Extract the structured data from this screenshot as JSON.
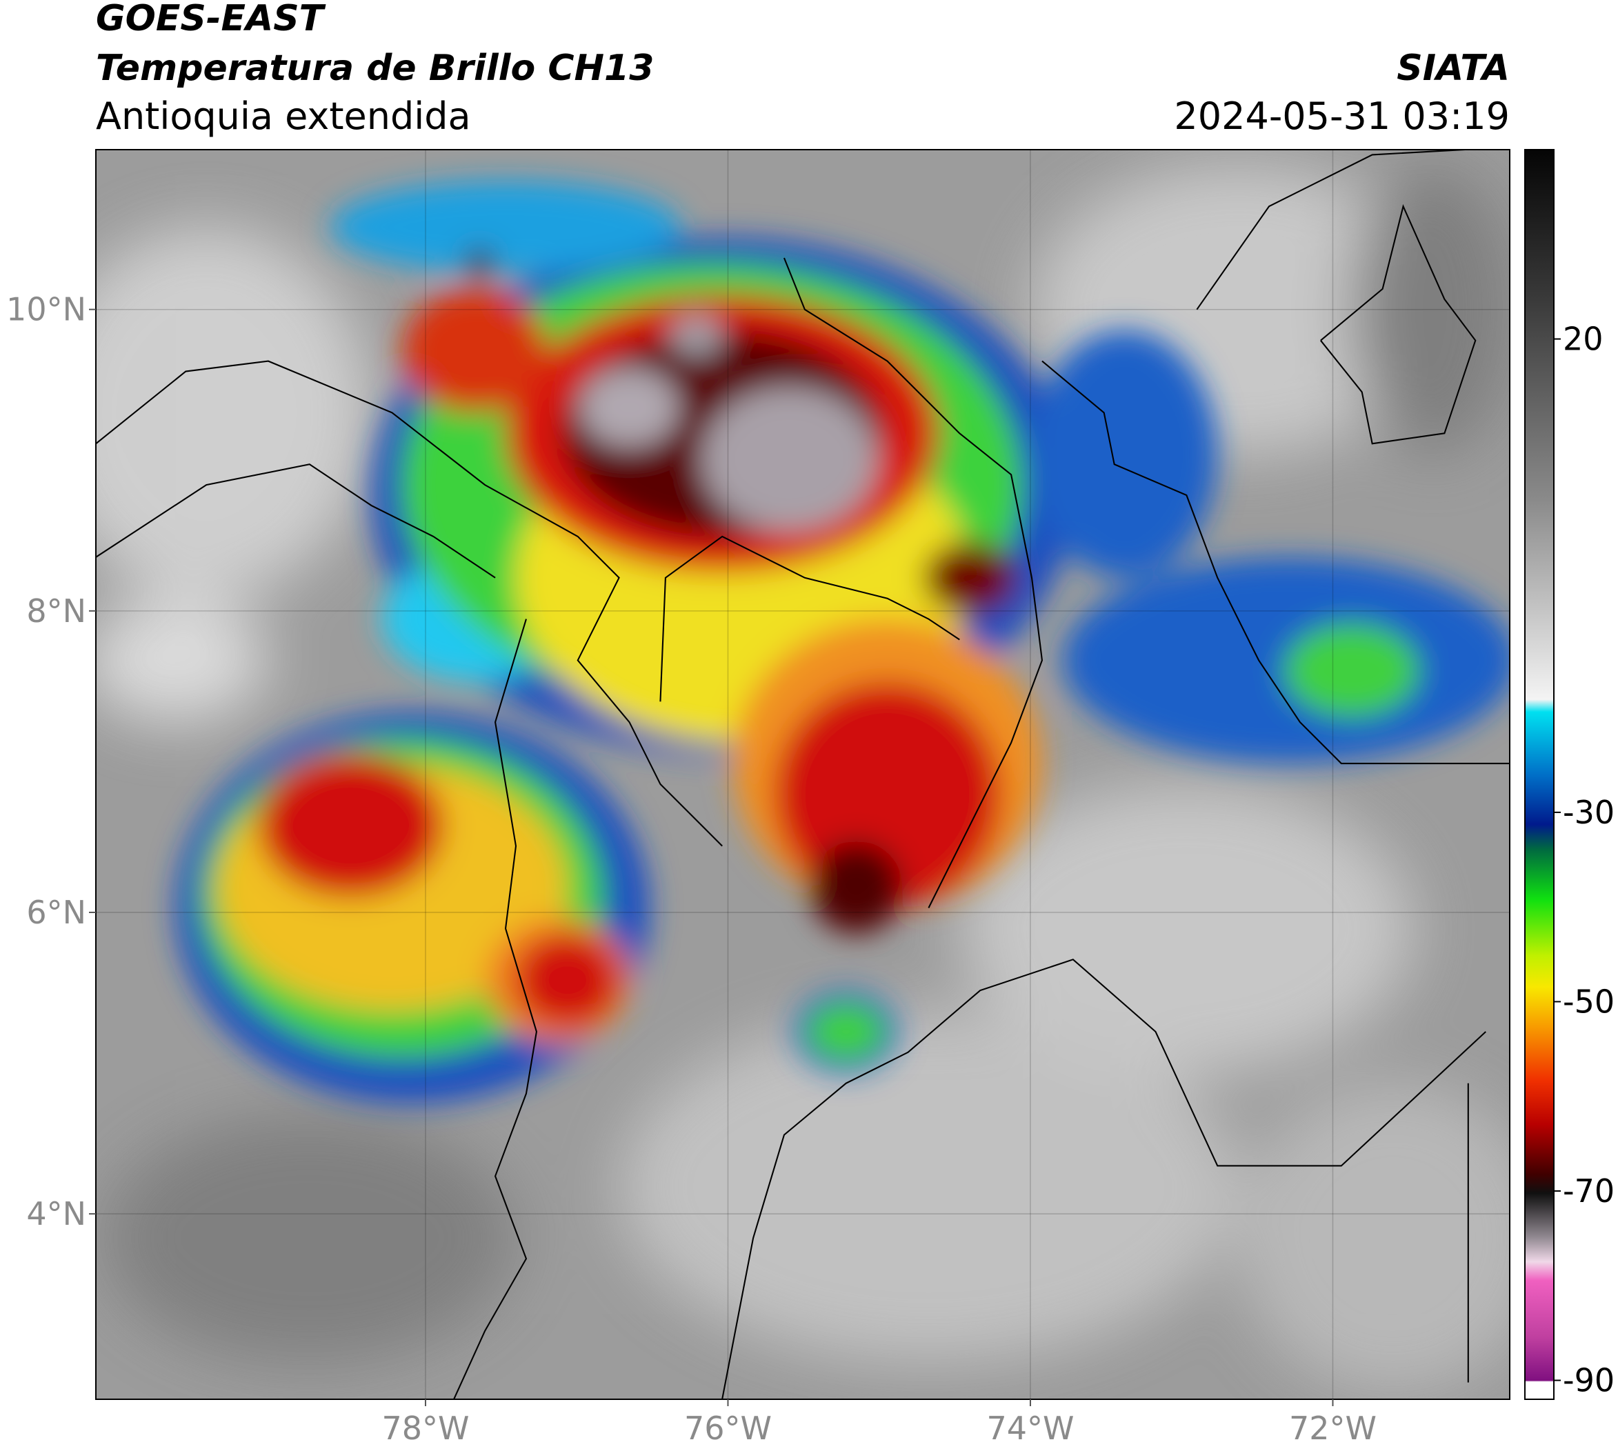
{
  "header": {
    "satellite": "GOES-EAST",
    "product": "Temperatura de Brillo CH13",
    "region": "Antioquia extendida",
    "source": "SIATA",
    "datetime": "2024-05-31 03:19"
  },
  "map": {
    "xlim": [
      -80.18,
      -70.83
    ],
    "ylim": [
      2.77,
      11.06
    ],
    "grid": true,
    "xticks": [
      {
        "value": -78,
        "label": "78°W"
      },
      {
        "value": -76,
        "label": "76°W"
      },
      {
        "value": -74,
        "label": "74°W"
      },
      {
        "value": -72,
        "label": "72°W"
      }
    ],
    "yticks": [
      {
        "value": 10,
        "label": "10°N"
      },
      {
        "value": 8,
        "label": "8°N"
      },
      {
        "value": 6,
        "label": "6°N"
      },
      {
        "value": 4,
        "label": "4°N"
      }
    ]
  },
  "colorbar": {
    "lim": [
      -92,
      40
    ],
    "ticks": [
      20,
      -30,
      -50,
      -70,
      -90
    ]
  }
}
